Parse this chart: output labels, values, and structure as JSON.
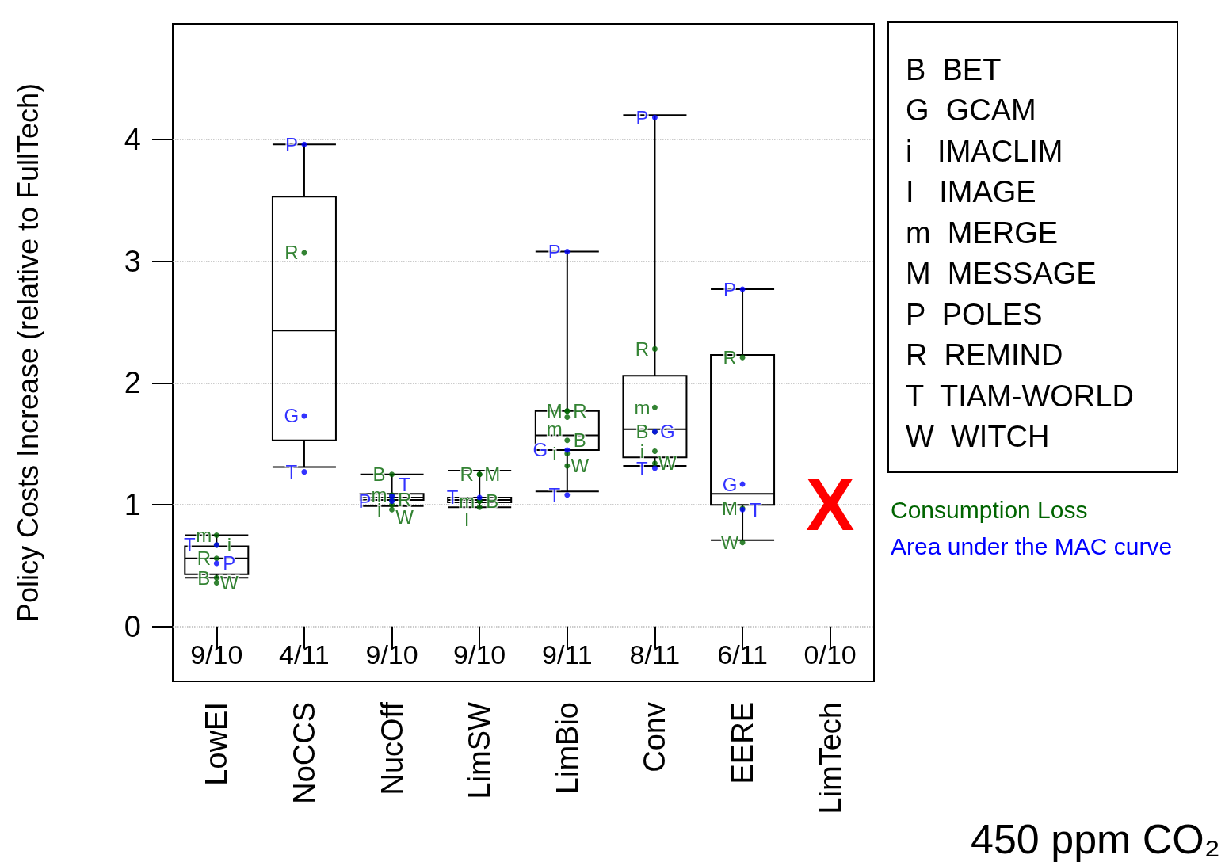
{
  "chart_data": {
    "type": "box",
    "ylabel": "Policy Costs Increase (relative to FullTech)",
    "categories": [
      "LowEI",
      "NoCCS",
      "NucOff",
      "LimSW",
      "LimBio",
      "Conv",
      "EERE",
      "LimTech"
    ],
    "boxes": [
      {
        "low": 0.4,
        "q1": 0.43,
        "median": 0.56,
        "q3": 0.66,
        "high": 0.75
      },
      {
        "low": 1.31,
        "q1": 1.53,
        "median": 2.43,
        "q3": 3.53,
        "high": 3.96
      },
      {
        "low": 0.99,
        "q1": 1.04,
        "median": 1.06,
        "q3": 1.09,
        "high": 1.25
      },
      {
        "low": 0.98,
        "q1": 1.02,
        "median": 1.04,
        "q3": 1.06,
        "high": 1.28
      },
      {
        "low": 1.11,
        "q1": 1.45,
        "median": 1.57,
        "q3": 1.77,
        "high": 3.08
      },
      {
        "low": 1.32,
        "q1": 1.39,
        "median": 1.62,
        "q3": 2.06,
        "high": 4.2
      },
      {
        "low": 0.71,
        "q1": 1.0,
        "median": 1.09,
        "q3": 2.23,
        "high": 2.77
      },
      null
    ],
    "series": [
      {
        "name": "Consumption Loss",
        "color": "#006400",
        "type": "scatter",
        "x": [
          "LowEI",
          "LowEI",
          "LowEI",
          "LowEI",
          "LowEI",
          "NoCCS",
          "NucOff",
          "NucOff",
          "NucOff",
          "NucOff",
          "NucOff",
          "LimSW",
          "LimSW",
          "LimSW",
          "LimSW",
          "LimSW",
          "LimBio",
          "LimBio",
          "LimBio",
          "LimBio",
          "LimBio",
          "LimBio",
          "Conv",
          "Conv",
          "Conv",
          "Conv",
          "Conv",
          "EERE",
          "EERE",
          "EERE"
        ],
        "values": [
          0.75,
          0.67,
          0.56,
          0.4,
          0.36,
          3.07,
          1.25,
          1.08,
          0.96,
          1.04,
          1.0,
          1.25,
          1.25,
          1.03,
          1.03,
          0.98,
          1.77,
          1.77,
          1.72,
          1.53,
          1.42,
          1.32,
          2.28,
          1.8,
          1.6,
          1.44,
          1.34,
          2.21,
          0.97,
          0.69
        ],
        "value_labels": [
          "m",
          "i",
          "R",
          "B",
          "W",
          "R",
          "B",
          "m",
          "i",
          "R",
          "W",
          "R",
          "M",
          "m",
          "B",
          "I",
          "M",
          "R",
          "m",
          "B",
          "i",
          "W",
          "R",
          "m",
          "B",
          "i",
          "W",
          "R",
          "M",
          "W"
        ]
      },
      {
        "name": "Area under the MAC curve",
        "color": "#0000ff",
        "type": "scatter",
        "x": [
          "LowEI",
          "LowEI",
          "NoCCS",
          "NoCCS",
          "NoCCS",
          "NucOff",
          "NucOff",
          "LimSW",
          "LimBio",
          "LimBio",
          "LimBio",
          "Conv",
          "Conv",
          "Conv",
          "EERE",
          "EERE",
          "EERE"
        ],
        "values": [
          0.67,
          0.52,
          3.96,
          1.73,
          1.27,
          1.07,
          1.03,
          1.06,
          3.08,
          1.45,
          1.08,
          4.18,
          1.6,
          1.3,
          2.77,
          1.17,
          0.96
        ],
        "value_labels": [
          "T",
          "P",
          "P",
          "G",
          "T",
          "T",
          "P",
          "T",
          "P",
          "G",
          "T",
          "P",
          "G",
          "T",
          "P",
          "G",
          "T"
        ]
      }
    ],
    "marker": "circle",
    "ylim": [
      -0.45,
      4.95
    ],
    "yticks": [
      0,
      1,
      2,
      3,
      4
    ],
    "grid": "y",
    "annotations": [
      "B  BET\nG  GCAM\ni   IMACLIM\nI   IMAGE\nm  MERGE\nM  MESSAGE\nP  POLES\nR  REMIND\nT  TIAM-WORLD\nW  WITCH",
      "450 ppm CO₂",
      "9/10",
      "4/11",
      "9/10",
      "9/10",
      "9/11",
      "8/11",
      "6/11",
      "0/10",
      "X"
    ]
  }
}
